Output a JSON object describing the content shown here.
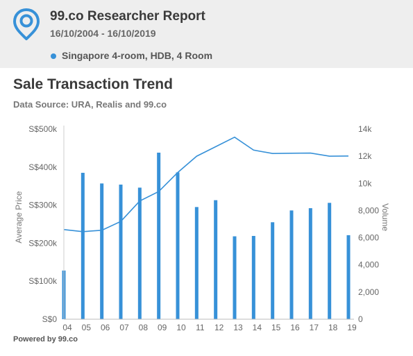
{
  "header": {
    "title": "99.co Researcher Report",
    "dates": "16/10/2004 - 16/10/2019",
    "legend_label": "Singapore 4-room, HDB, 4 Room",
    "accent_color": "#3791d8",
    "logo_icon": "location-pin-icon"
  },
  "chart_title": "Sale Transaction Trend",
  "chart_subtitle": "Data Source: URA, Realis and 99.co",
  "footer": "Powered by 99.co",
  "chart_data": {
    "type": "bar+line",
    "categories": [
      "04",
      "05",
      "06",
      "07",
      "08",
      "09",
      "10",
      "11",
      "12",
      "13",
      "14",
      "15",
      "16",
      "17",
      "18",
      "19"
    ],
    "series": [
      {
        "type": "bar",
        "axis": "left",
        "values": [
          128000,
          385000,
          357000,
          354000,
          346000,
          438000,
          386000,
          295000,
          313000,
          218000,
          219000,
          255000,
          286000,
          292000,
          306000,
          221000
        ]
      },
      {
        "type": "line",
        "axis": "right",
        "values": [
          6600,
          6450,
          6550,
          7200,
          8700,
          9400,
          10800,
          12000,
          12700,
          13400,
          12450,
          12200,
          12220,
          12230,
          12000,
          12020
        ]
      }
    ],
    "ylabel": "Average Price",
    "y2label": "Volume",
    "ylim": [
      0,
      500000
    ],
    "y2lim": [
      0,
      14000
    ],
    "yticks": [
      "S$0",
      "S$100k",
      "S$200k",
      "S$300k",
      "S$400k",
      "S$500k"
    ],
    "y2ticks": [
      "0",
      "2,000",
      "4,000",
      "6,000",
      "8,000",
      "10k",
      "12k",
      "14k"
    ],
    "grid": false,
    "color": "#3791d8"
  }
}
